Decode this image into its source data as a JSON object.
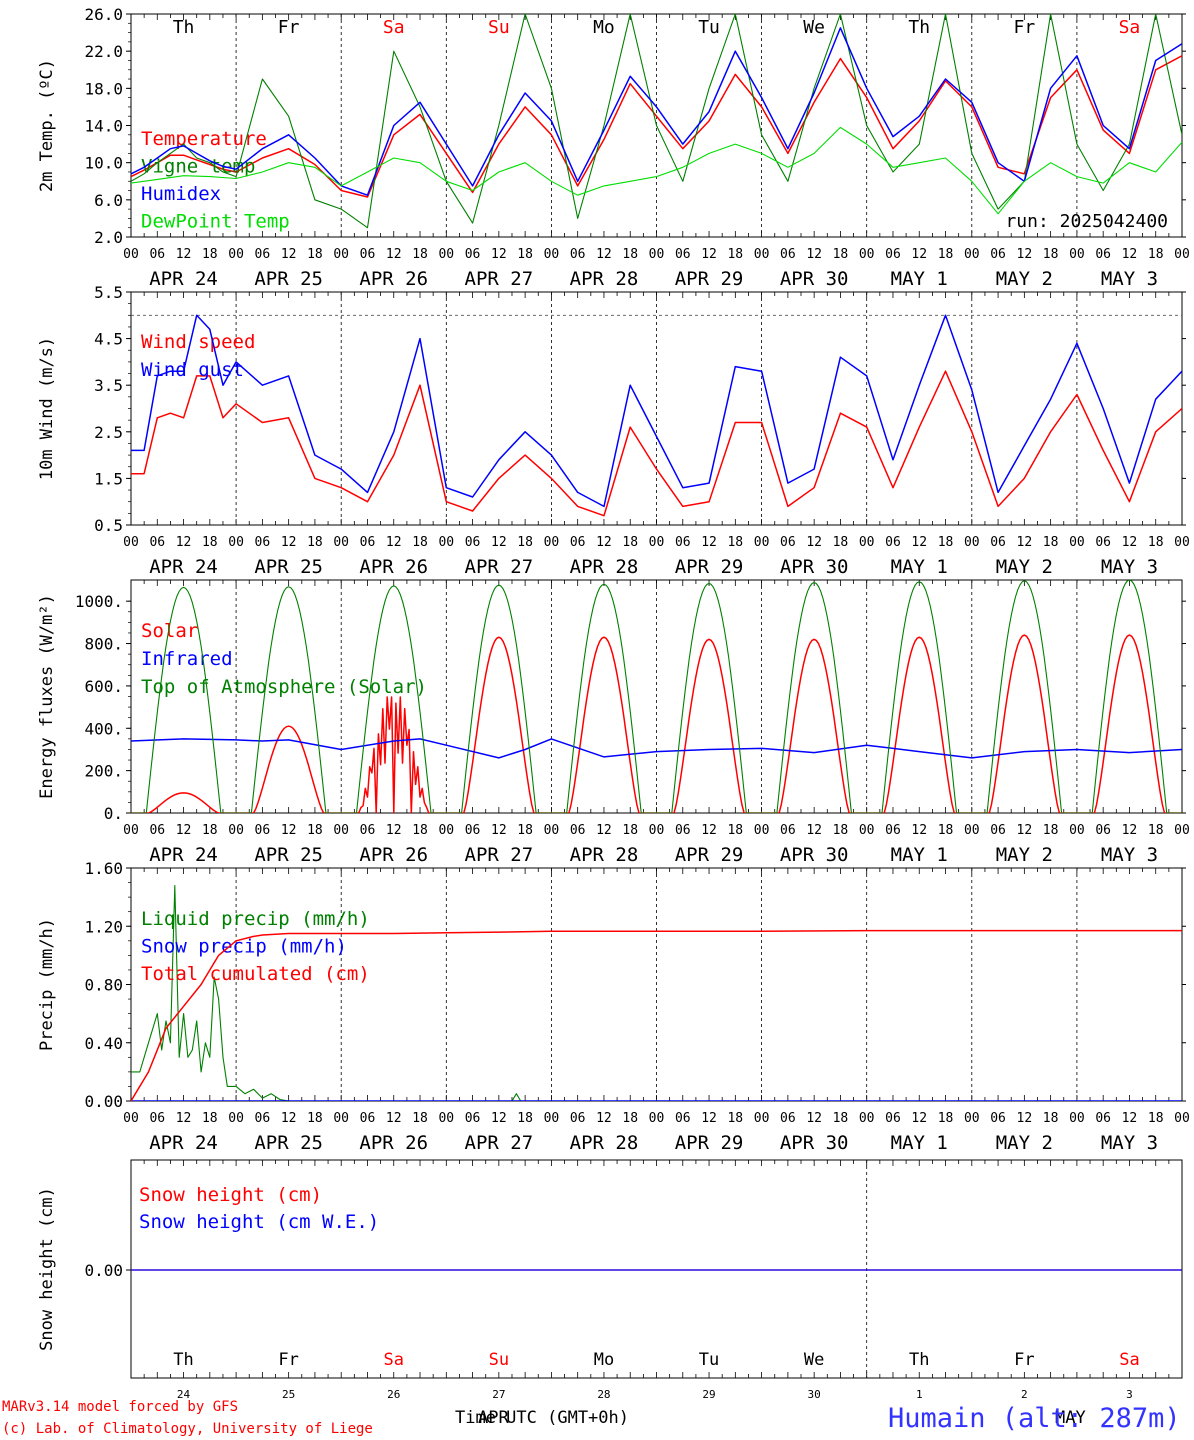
{
  "footer": {
    "model": "MARv3.14 model forced by GFS",
    "credit": "(c) Lab. of Climatology, University of Liege",
    "time_label": "Time UTC (GMT+0h)",
    "apr_label": "APR",
    "may_label": "MAY",
    "station": "Humain (alt: 287m)"
  },
  "colors": {
    "red": "#ff0000",
    "blue": "#0000ff",
    "green": "#008000",
    "lightgreen": "#00dd00",
    "black": "#000000",
    "gray": "#888888"
  },
  "hour_ticks": [
    "00",
    "06",
    "12",
    "18"
  ],
  "weekday_labels": [
    {
      "text": "Th",
      "color": "#000000"
    },
    {
      "text": "Fr",
      "color": "#000000"
    },
    {
      "text": "Sa",
      "color": "#ff0000"
    },
    {
      "text": "Su",
      "color": "#ff0000"
    },
    {
      "text": "Mo",
      "color": "#000000"
    },
    {
      "text": "Tu",
      "color": "#000000"
    },
    {
      "text": "We",
      "color": "#000000"
    },
    {
      "text": "Th",
      "color": "#000000"
    },
    {
      "text": "Fr",
      "color": "#000000"
    },
    {
      "text": "Sa",
      "color": "#ff0000"
    }
  ],
  "date_labels": [
    "APR 24",
    "APR 25",
    "APR 26",
    "APR 27",
    "APR 28",
    "APR 29",
    "APR 30",
    "MAY  1",
    "MAY  2",
    "MAY  3"
  ],
  "day_numbers": [
    "24",
    "25",
    "26",
    "27",
    "28",
    "29",
    "30",
    "1",
    "2",
    "3"
  ],
  "chart_data": [
    {
      "type": "line",
      "ylabel": "2m Temp. (ºC)",
      "ylim": [
        2,
        26
      ],
      "yticks": [
        "2.0",
        "6.0",
        "10.0",
        "14.0",
        "18.0",
        "22.0",
        "26.0"
      ],
      "annotation": "run: 2025042400",
      "series": [
        {
          "name": "Temperature",
          "color": "#ff0000",
          "x": [
            0,
            3,
            6,
            9,
            12,
            15,
            18,
            21,
            24,
            30,
            36,
            42,
            48,
            54,
            60,
            66,
            72,
            78,
            84,
            90,
            96,
            102,
            108,
            114,
            120,
            126,
            132,
            138,
            144,
            150,
            156,
            162,
            168,
            174,
            180,
            186,
            192,
            198,
            204,
            210,
            216,
            222,
            228,
            234,
            240
          ],
          "values": [
            8.5,
            9.2,
            10.0,
            10.8,
            10.8,
            10.3,
            9.8,
            9.3,
            9.0,
            10.5,
            11.5,
            9.8,
            7.0,
            6.3,
            13.0,
            15.2,
            11.0,
            6.8,
            12.0,
            16.0,
            13.0,
            7.5,
            12.5,
            18.5,
            15.0,
            11.5,
            14.5,
            19.5,
            16.0,
            11.0,
            16.5,
            21.2,
            17.0,
            11.5,
            14.5,
            18.8,
            16.0,
            9.5,
            8.8,
            17.0,
            20.0,
            13.5,
            11.0,
            20.0,
            21.5
          ]
        },
        {
          "name": "Vigne temp",
          "color": "#008000",
          "x": [
            0,
            3,
            6,
            9,
            12,
            15,
            18,
            21,
            24,
            30,
            36,
            42,
            48,
            54,
            60,
            66,
            72,
            78,
            84,
            90,
            96,
            102,
            108,
            114,
            120,
            126,
            132,
            138,
            144,
            150,
            156,
            162,
            168,
            174,
            180,
            186,
            192,
            198,
            204,
            210,
            216,
            222,
            228,
            234,
            240
          ],
          "values": [
            8.0,
            8.8,
            10.0,
            11.0,
            12.0,
            10.5,
            10.0,
            9.0,
            8.5,
            19.0,
            15.0,
            6.0,
            5.0,
            3.0,
            22.0,
            16.0,
            8.0,
            3.5,
            14.0,
            26.0,
            18.0,
            4.0,
            14.0,
            26.0,
            14.0,
            8.0,
            18.0,
            26.0,
            13.0,
            8.0,
            18.0,
            26.0,
            14.0,
            9.0,
            12.0,
            26.0,
            11.0,
            5.0,
            8.0,
            26.0,
            12.0,
            7.0,
            12.0,
            26.0,
            13.0
          ]
        },
        {
          "name": "Humidex",
          "color": "#0000ff",
          "x": [
            0,
            3,
            6,
            9,
            12,
            15,
            18,
            21,
            24,
            30,
            36,
            42,
            48,
            54,
            60,
            66,
            72,
            78,
            84,
            90,
            96,
            102,
            108,
            114,
            120,
            126,
            132,
            138,
            144,
            150,
            156,
            162,
            168,
            174,
            180,
            186,
            192,
            198,
            204,
            210,
            216,
            222,
            228,
            234,
            240
          ],
          "values": [
            8.8,
            9.5,
            10.5,
            11.5,
            11.8,
            11.0,
            10.2,
            9.6,
            9.3,
            11.5,
            13.0,
            10.5,
            7.5,
            6.5,
            14.0,
            16.5,
            12.0,
            7.5,
            13.0,
            17.5,
            14.5,
            8.0,
            13.5,
            19.3,
            16.0,
            12.0,
            15.5,
            22.0,
            17.0,
            11.5,
            17.5,
            24.5,
            18.0,
            12.8,
            15.0,
            19.0,
            16.5,
            10.0,
            8.0,
            18.0,
            21.5,
            14.0,
            11.5,
            21.0,
            22.8
          ]
        },
        {
          "name": "DewPoint Temp",
          "color": "#00dd00",
          "x": [
            0,
            6,
            12,
            18,
            24,
            30,
            36,
            42,
            48,
            54,
            60,
            66,
            72,
            78,
            84,
            90,
            96,
            102,
            108,
            114,
            120,
            126,
            132,
            138,
            144,
            150,
            156,
            162,
            168,
            174,
            180,
            186,
            192,
            198,
            204,
            210,
            216,
            222,
            228,
            234,
            240
          ],
          "values": [
            7.8,
            8.2,
            8.6,
            8.5,
            8.3,
            9.0,
            10.0,
            9.5,
            7.5,
            9.0,
            10.5,
            10.0,
            8.0,
            7.0,
            9.0,
            10.0,
            8.0,
            6.5,
            7.5,
            8.0,
            8.5,
            9.5,
            11.0,
            12.0,
            11.0,
            9.5,
            11.0,
            13.8,
            12.0,
            9.5,
            10.0,
            10.5,
            8.0,
            4.5,
            8.0,
            10.0,
            8.5,
            7.8,
            10.0,
            9.0,
            12.2
          ]
        }
      ]
    },
    {
      "type": "line",
      "ylabel": "10m Wind (m/s)",
      "ylim": [
        0.5,
        5.5
      ],
      "yticks": [
        "0.5",
        "1.5",
        "2.5",
        "3.5",
        "4.5",
        "5.5"
      ],
      "reference_line": 5.0,
      "series": [
        {
          "name": "Wind speed",
          "color": "#ff0000",
          "x": [
            0,
            3,
            6,
            9,
            12,
            15,
            18,
            21,
            24,
            30,
            36,
            42,
            48,
            54,
            60,
            66,
            72,
            78,
            84,
            90,
            96,
            102,
            108,
            114,
            120,
            126,
            132,
            138,
            144,
            150,
            156,
            162,
            168,
            174,
            180,
            186,
            192,
            198,
            204,
            210,
            216,
            222,
            228,
            234,
            240
          ],
          "values": [
            1.6,
            1.6,
            2.8,
            2.9,
            2.8,
            3.7,
            3.7,
            2.8,
            3.1,
            2.7,
            2.8,
            1.5,
            1.3,
            1.0,
            2.0,
            3.5,
            1.0,
            0.8,
            1.5,
            2.0,
            1.5,
            0.9,
            0.7,
            2.6,
            1.7,
            0.9,
            1.0,
            2.7,
            2.7,
            0.9,
            1.3,
            2.9,
            2.6,
            1.3,
            2.6,
            3.8,
            2.5,
            0.9,
            1.5,
            2.5,
            3.3,
            2.1,
            1.0,
            2.5,
            3.0
          ]
        },
        {
          "name": "Wind gust",
          "color": "#0000ff",
          "x": [
            0,
            3,
            6,
            9,
            12,
            15,
            18,
            21,
            24,
            30,
            36,
            42,
            48,
            54,
            60,
            66,
            72,
            78,
            84,
            90,
            96,
            102,
            108,
            114,
            120,
            126,
            132,
            138,
            144,
            150,
            156,
            162,
            168,
            174,
            180,
            186,
            192,
            198,
            204,
            210,
            216,
            222,
            228,
            234,
            240
          ],
          "values": [
            2.1,
            2.1,
            3.7,
            3.8,
            3.8,
            5.0,
            4.7,
            3.5,
            4.0,
            3.5,
            3.7,
            2.0,
            1.7,
            1.2,
            2.5,
            4.5,
            1.3,
            1.1,
            1.9,
            2.5,
            2.0,
            1.2,
            0.9,
            3.5,
            2.4,
            1.3,
            1.4,
            3.9,
            3.8,
            1.4,
            1.7,
            4.1,
            3.7,
            1.9,
            3.5,
            5.0,
            3.4,
            1.2,
            2.2,
            3.2,
            4.4,
            3.0,
            1.4,
            3.2,
            3.8
          ]
        }
      ]
    },
    {
      "type": "line",
      "ylabel": "Energy fluxes (W/m²)",
      "ylim": [
        0,
        1100
      ],
      "yticks": [
        "0.",
        "200.",
        "400.",
        "600.",
        "800.",
        "1000."
      ],
      "series": [
        {
          "name": "Solar",
          "color": "#ff0000",
          "peaks": [
            {
              "day": 0,
              "value": 95
            },
            {
              "day": 1,
              "value": 410
            },
            {
              "day": 2,
              "value": 580
            },
            {
              "day": 3,
              "value": 830
            },
            {
              "day": 4,
              "value": 830
            },
            {
              "day": 5,
              "value": 820
            },
            {
              "day": 6,
              "value": 820
            },
            {
              "day": 7,
              "value": 830
            },
            {
              "day": 8,
              "value": 840
            },
            {
              "day": 9,
              "value": 840
            }
          ]
        },
        {
          "name": "Infrared",
          "color": "#0000ff",
          "x": [
            0,
            12,
            24,
            30,
            36,
            48,
            60,
            66,
            72,
            84,
            90,
            96,
            108,
            120,
            132,
            144,
            156,
            168,
            180,
            192,
            204,
            216,
            228,
            240
          ],
          "values": [
            340,
            350,
            345,
            340,
            345,
            300,
            340,
            350,
            320,
            260,
            300,
            350,
            265,
            290,
            300,
            305,
            285,
            320,
            290,
            260,
            290,
            300,
            285,
            300
          ]
        },
        {
          "name": "Top of Atmosphere (Solar)",
          "color": "#008000",
          "peaks": [
            {
              "day": 0,
              "value": 1065
            },
            {
              "day": 1,
              "value": 1068
            },
            {
              "day": 2,
              "value": 1072
            },
            {
              "day": 3,
              "value": 1076
            },
            {
              "day": 4,
              "value": 1080
            },
            {
              "day": 5,
              "value": 1084
            },
            {
              "day": 6,
              "value": 1088
            },
            {
              "day": 7,
              "value": 1092
            },
            {
              "day": 8,
              "value": 1096
            },
            {
              "day": 9,
              "value": 1100
            }
          ]
        }
      ]
    },
    {
      "type": "line",
      "ylabel": "Precip (mm/h)",
      "ylim": [
        0,
        1.6
      ],
      "yticks": [
        "0.00",
        "0.40",
        "0.80",
        "1.20",
        "1.60"
      ],
      "series": [
        {
          "name": "Liquid precip (mm/h)",
          "color": "#008000",
          "x": [
            0,
            2,
            4,
            6,
            7,
            8,
            9,
            10,
            11,
            12,
            13,
            14,
            15,
            16,
            17,
            18,
            19,
            20,
            21,
            22,
            24,
            26,
            28,
            30,
            32,
            34,
            36,
            40,
            48,
            72,
            87,
            88,
            89,
            96,
            168,
            240
          ],
          "values": [
            0.2,
            0.2,
            0.4,
            0.6,
            0.35,
            0.55,
            0.4,
            1.48,
            0.3,
            0.6,
            0.3,
            0.35,
            0.55,
            0.2,
            0.4,
            0.3,
            0.85,
            0.7,
            0.3,
            0.1,
            0.1,
            0.05,
            0.08,
            0.02,
            0.05,
            0.01,
            0.0,
            0.0,
            0.0,
            0.0,
            0.0,
            0.05,
            0.0,
            0.0,
            0.0,
            0.0
          ]
        },
        {
          "name": "Snow precip (mm/h)",
          "color": "#0000ff",
          "x": [
            0,
            240
          ],
          "values": [
            0,
            0
          ]
        },
        {
          "name": "Total cumulated (cm)",
          "color": "#ff0000",
          "x": [
            0,
            4,
            8,
            12,
            16,
            20,
            24,
            28,
            30,
            36,
            48,
            60,
            72,
            84,
            96,
            120,
            144,
            168,
            192,
            216,
            240
          ],
          "values": [
            0.0,
            0.2,
            0.5,
            0.65,
            0.8,
            1.0,
            1.1,
            1.13,
            1.14,
            1.15,
            1.15,
            1.15,
            1.155,
            1.16,
            1.165,
            1.165,
            1.165,
            1.17,
            1.17,
            1.17,
            1.17
          ]
        }
      ]
    },
    {
      "type": "line",
      "ylabel": "Snow height (cm)",
      "yticks": [
        "0.00"
      ],
      "series": [
        {
          "name": "Snow height (cm)",
          "color": "#ff0000",
          "x": [
            0,
            240
          ],
          "values": [
            0,
            0
          ]
        },
        {
          "name": "Snow height (cm W.E.)",
          "color": "#0000ff",
          "x": [
            0,
            240
          ],
          "values": [
            0,
            0
          ]
        }
      ]
    }
  ]
}
